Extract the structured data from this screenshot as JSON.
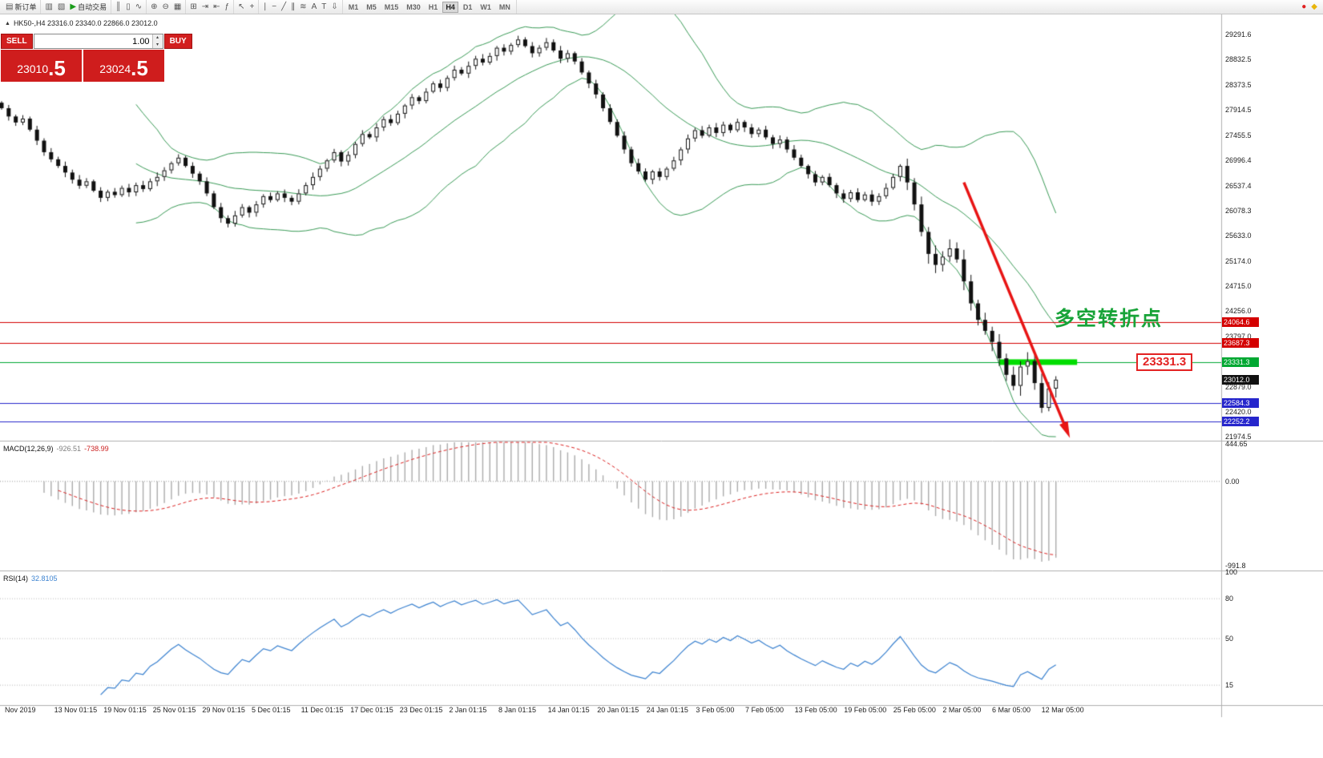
{
  "toolbar": {
    "groups": [
      {
        "name": "order",
        "items": [
          {
            "name": "new-order",
            "glyph": "▤",
            "label": "新订单"
          }
        ]
      },
      {
        "name": "windows",
        "items": [
          {
            "name": "charts-window",
            "glyph": "▥"
          },
          {
            "name": "profiles",
            "glyph": "▧"
          },
          {
            "name": "auto-trading",
            "glyph": "▶",
            "glyph_color": "#1a9c1a",
            "label": "自动交易"
          }
        ]
      },
      {
        "name": "chart-types",
        "items": [
          {
            "name": "bar-chart",
            "glyph": "║"
          },
          {
            "name": "candlestick-chart",
            "glyph": "▯"
          },
          {
            "name": "line-chart",
            "glyph": "∿"
          }
        ]
      },
      {
        "name": "zoom",
        "items": [
          {
            "name": "zoom-in",
            "glyph": "⊕"
          },
          {
            "name": "zoom-out",
            "glyph": "⊖"
          },
          {
            "name": "tile-windows",
            "glyph": "▦"
          }
        ]
      },
      {
        "name": "chart-tools",
        "items": [
          {
            "name": "new-chart",
            "glyph": "⊞"
          },
          {
            "name": "auto-scroll",
            "glyph": "⇥"
          },
          {
            "name": "chart-shift",
            "glyph": "⇤"
          },
          {
            "name": "indicator-list",
            "glyph": "ƒ"
          }
        ]
      },
      {
        "name": "cursor-tools",
        "items": [
          {
            "name": "cursor",
            "glyph": "↖"
          },
          {
            "name": "crosshair",
            "glyph": "+"
          }
        ]
      },
      {
        "name": "draw-tools",
        "items": [
          {
            "name": "vertical-line",
            "glyph": "∣"
          },
          {
            "name": "horizontal-line",
            "glyph": "−"
          },
          {
            "name": "trendline",
            "glyph": "╱"
          },
          {
            "name": "equidistant-channel",
            "glyph": "∥"
          },
          {
            "name": "fibonacci",
            "glyph": "≋"
          },
          {
            "name": "text",
            "glyph": "A"
          },
          {
            "name": "text-label",
            "glyph": "T"
          },
          {
            "name": "arrow-objects",
            "glyph": "⇩"
          }
        ]
      }
    ],
    "timeframes": [
      "M1",
      "M5",
      "M15",
      "M30",
      "H1",
      "H4",
      "D1",
      "W1",
      "MN"
    ],
    "active_timeframe": "H4",
    "right_items": [
      {
        "name": "alerts",
        "glyph": "●",
        "glyph_color": "#e02020"
      },
      {
        "name": "news",
        "glyph": "◆",
        "glyph_color": "#e8b50a"
      }
    ]
  },
  "icons": {
    "spinner_up": "▴",
    "spinner_down": "▾",
    "symbol_marker": "▲"
  },
  "order_panel": {
    "sell_label": "SELL",
    "buy_label": "BUY",
    "volume": "1.00",
    "sell_price_main": "23010",
    "sell_price_big": ".5",
    "buy_price_main": "23024",
    "buy_price_big": ".5"
  },
  "chart": {
    "symbol_info": "HK50-,H4 23316.0 23340.0 22866.0 23012.0",
    "annotation_text": "多空转折点",
    "price_callout": "23331.3"
  },
  "indicators": {
    "macd": {
      "label": "MACD(12,26,9)",
      "value_main": "-926.51",
      "value_signal": "-738.99"
    },
    "rsi": {
      "label": "RSI(14)",
      "value": "32.8105"
    }
  },
  "chart_data": [
    {
      "type": "candlestick",
      "symbol": "HK50-",
      "timeframe": "H4",
      "ohlc_current": {
        "open": 23316.0,
        "high": 23340.0,
        "low": 22866.0,
        "close": 23012.0
      },
      "first_open": 28050,
      "closes": [
        27950,
        27800,
        27690,
        27760,
        27560,
        27360,
        27150,
        27020,
        26900,
        26780,
        26650,
        26540,
        26620,
        26450,
        26320,
        26430,
        26370,
        26500,
        26420,
        26550,
        26480,
        26620,
        26700,
        26820,
        26950,
        27050,
        26900,
        26760,
        26620,
        26400,
        26150,
        25950,
        25850,
        26000,
        26150,
        26050,
        26200,
        26350,
        26280,
        26400,
        26320,
        26250,
        26400,
        26550,
        26700,
        26850,
        27000,
        27150,
        26980,
        27100,
        27300,
        27480,
        27420,
        27600,
        27750,
        27680,
        27850,
        28000,
        28150,
        28080,
        28250,
        28400,
        28320,
        28500,
        28650,
        28580,
        28720,
        28850,
        28780,
        28900,
        29050,
        28980,
        29100,
        29200,
        29080,
        28950,
        29050,
        29150,
        29000,
        28850,
        28950,
        28800,
        28600,
        28400,
        28200,
        27950,
        27700,
        27450,
        27200,
        26950,
        26800,
        26650,
        26800,
        26700,
        26850,
        27000,
        27200,
        27400,
        27550,
        27450,
        27600,
        27500,
        27650,
        27550,
        27700,
        27600,
        27480,
        27560,
        27420,
        27300,
        27380,
        27200,
        27050,
        26900,
        26750,
        26600,
        26700,
        26550,
        26400,
        26300,
        26420,
        26280,
        26380,
        26250,
        26350,
        26500,
        26700,
        26900,
        26600,
        26200,
        25700,
        25300,
        25100,
        25250,
        25400,
        25200,
        24800,
        24400,
        24100,
        23900,
        23700,
        23400,
        23100,
        22900,
        23250,
        23350,
        22950,
        22500,
        22850,
        23012
      ],
      "overlays": {
        "bollinger_period": 20,
        "bollinger_dev": 2,
        "band_color": "#3a9b57"
      },
      "y_axis_ticks": [
        {
          "t": "29291.6",
          "v": 29291.6
        },
        {
          "t": "28832.5",
          "v": 28832.5
        },
        {
          "t": "28373.5",
          "v": 28373.5
        },
        {
          "t": "27914.5",
          "v": 27914.5
        },
        {
          "t": "27455.5",
          "v": 27455.5
        },
        {
          "t": "26996.4",
          "v": 26996.4
        },
        {
          "t": "26537.4",
          "v": 26537.4
        },
        {
          "t": "26078.3",
          "v": 26078.3
        },
        {
          "t": "25633.0",
          "v": 25633.0
        },
        {
          "t": "25174.0",
          "v": 25174.0
        },
        {
          "t": "24715.0",
          "v": 24715.0
        },
        {
          "t": "24256.0",
          "v": 24256.0
        },
        {
          "t": "23797.0",
          "v": 23797.0
        },
        {
          "t": "22879.0",
          "v": 22879.0
        },
        {
          "t": "22420.0",
          "v": 22420.0
        },
        {
          "t": "21974.5",
          "v": 21974.5
        }
      ],
      "price_lines": [
        {
          "value": 24064.6,
          "color": "#d40000"
        },
        {
          "value": 23687.3,
          "color": "#d40000"
        },
        {
          "value": 23331.3,
          "color": "#00a832"
        },
        {
          "value": 22584.3,
          "color": "#2626cc"
        },
        {
          "value": 22252.2,
          "color": "#2626cc"
        }
      ],
      "axis_badges": [
        {
          "t": "24064.6",
          "v": 24064.6,
          "bg": "#d40000"
        },
        {
          "t": "23687.3",
          "v": 23687.3,
          "bg": "#d40000"
        },
        {
          "t": "23331.3",
          "v": 23331.3,
          "bg": "#00a832"
        },
        {
          "t": "23012.0",
          "v": 23012.0,
          "bg": "#111111"
        },
        {
          "t": "22584.3",
          "v": 22584.3,
          "bg": "#2626cc"
        },
        {
          "t": "22252.2",
          "v": 22252.2,
          "bg": "#2626cc"
        }
      ],
      "highlight_bar": {
        "value": 23331.3,
        "from_index": 141,
        "to_index": 152,
        "color": "#00dd00"
      },
      "trend_arrow": {
        "from_index": 136,
        "from_price": 26600,
        "to_index": 150.5,
        "to_price": 22100,
        "color": "#e81414"
      },
      "x_axis_labels": [
        "Nov 2019",
        "13 Nov 01:15",
        "19 Nov 01:15",
        "25 Nov 01:15",
        "29 Nov 01:15",
        "5 Dec 01:15",
        "11 Dec 01:15",
        "17 Dec 01:15",
        "23 Dec 01:15",
        "2 Jan 01:15",
        "8 Jan 01:15",
        "14 Jan 01:15",
        "20 Jan 01:15",
        "24 Jan 01:15",
        "3 Feb 05:00",
        "7 Feb 05:00",
        "13 Feb 05:00",
        "19 Feb 05:00",
        "25 Feb 05:00",
        "2 Mar 05:00",
        "6 Mar 05:00",
        "12 Mar 05:00"
      ]
    },
    {
      "type": "macd",
      "params": [
        12,
        26,
        9
      ],
      "current_macd": -926.51,
      "current_signal": -738.99,
      "histogram_color": "#ababab",
      "signal_color": "#dd2222",
      "y_ticks": [
        {
          "t": "444.65",
          "v": 444.65
        },
        {
          "t": "0.00",
          "v": 0
        },
        {
          "t": "-991.8",
          "v": -991.8
        }
      ]
    },
    {
      "type": "rsi",
      "period": 14,
      "current": 32.8105,
      "line_color": "#3b82d0",
      "y_ticks": [
        {
          "t": "100",
          "v": 100
        },
        {
          "t": "80",
          "v": 80
        },
        {
          "t": "50",
          "v": 50
        },
        {
          "t": "15",
          "v": 15
        }
      ]
    }
  ]
}
